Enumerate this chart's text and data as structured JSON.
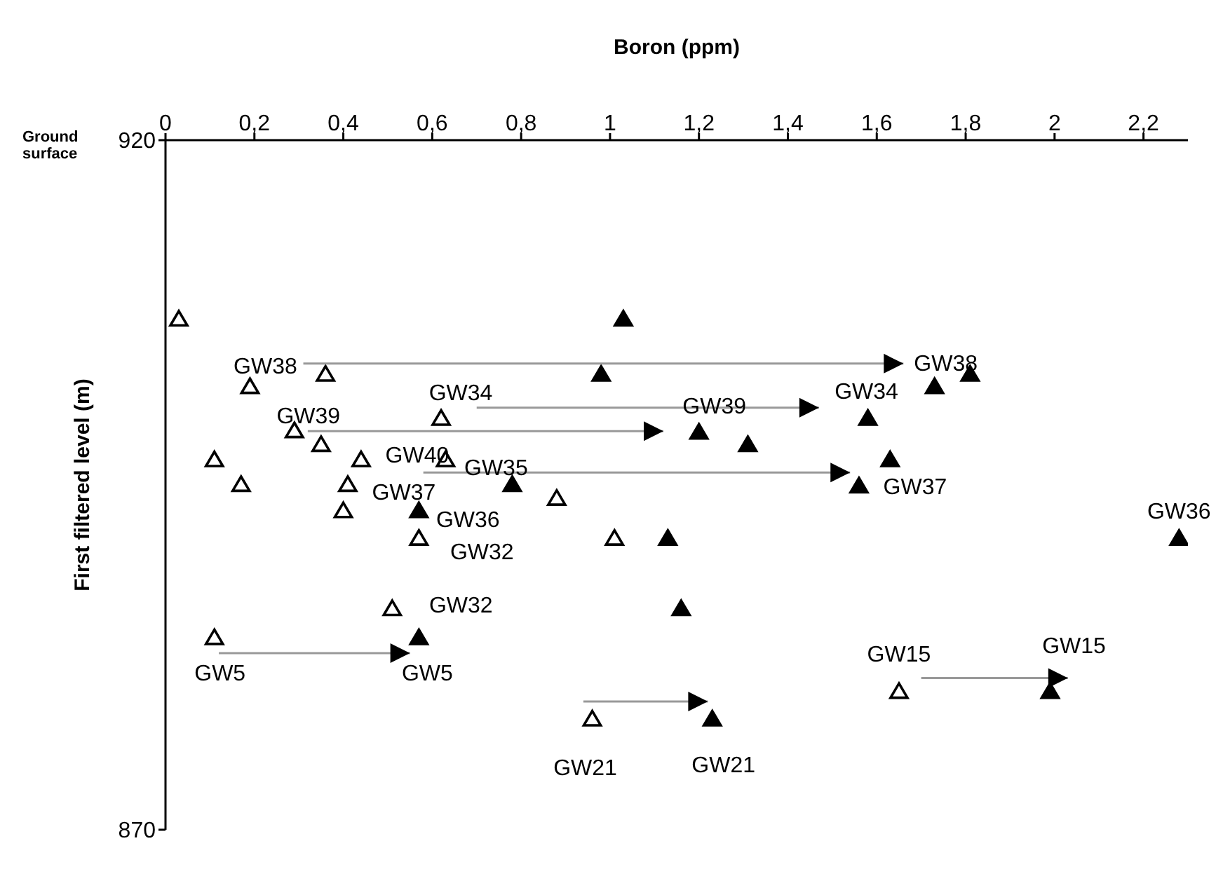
{
  "chart_data": {
    "type": "scatter",
    "xlabel": "Boron (ppm)",
    "ylabel": "First filtered  level (m)",
    "xlim": [
      0,
      2.3
    ],
    "xticks": [
      0,
      {
        "value": 0.2,
        "label": "0,2"
      },
      {
        "value": 0.4,
        "label": "0,4"
      },
      {
        "value": 0.6,
        "label": "0,6"
      },
      {
        "value": 0.8,
        "label": "0,8"
      },
      1,
      {
        "value": 1.2,
        "label": "1,2"
      },
      {
        "value": 1.4,
        "label": "1,4"
      },
      {
        "value": 1.6,
        "label": "1,6"
      },
      {
        "value": 1.8,
        "label": "1,8"
      },
      2,
      {
        "value": 2.2,
        "label": "2,2"
      }
    ],
    "ylim": [
      870,
      920
    ],
    "yticks": [
      870,
      920
    ],
    "grid": false,
    "marker": "triangle",
    "series": [
      {
        "color": "#ffffff",
        "x": [
          0.03,
          0.19,
          0.36,
          0.62,
          0.29,
          0.35,
          0.11,
          0.44,
          0.63,
          0.17,
          0.41,
          0.4,
          0.88,
          0.57,
          1.01,
          0.51,
          0.11,
          0.96,
          1.65
        ],
        "values": [
          907,
          902.1,
          903,
          899.8,
          898.9,
          897.9,
          896.8,
          896.8,
          896.8,
          895,
          895,
          893.1,
          894,
          891.1,
          891.1,
          886,
          883.9,
          878,
          880
        ]
      },
      {
        "color": "#000000",
        "x": [
          1.03,
          0.98,
          1.73,
          1.81,
          1.2,
          1.31,
          1.58,
          1.63,
          0.78,
          1.56,
          0.57,
          1.13,
          1.16,
          0.57,
          1.23,
          1.99,
          2.28
        ],
        "values": [
          907,
          903,
          902.1,
          903,
          898.8,
          897.9,
          899.8,
          896.8,
          895,
          894.9,
          893.1,
          891.1,
          886,
          883.9,
          878,
          880,
          891.1
        ]
      },
      {
        "type": "line",
        "color": "#999999",
        "marker": "none",
        "x": [
          0.31,
          1.66
        ],
        "values": [
          903.8,
          903.8
        ]
      },
      {
        "type": "line",
        "color": "#999999",
        "marker": "none",
        "x": [
          0.7,
          1.47
        ],
        "values": [
          900.6,
          900.6
        ]
      },
      {
        "type": "line",
        "color": "#999999",
        "marker": "none",
        "x": [
          0.32,
          1.12
        ],
        "values": [
          898.9,
          898.9
        ]
      },
      {
        "type": "line",
        "color": "#999999",
        "marker": "none",
        "x": [
          0.58,
          1.54
        ],
        "values": [
          895.9,
          895.9
        ]
      },
      {
        "type": "line",
        "color": "#999999",
        "marker": "none",
        "x": [
          0.12,
          0.55
        ],
        "values": [
          882.8,
          882.8
        ]
      },
      {
        "type": "line",
        "color": "#999999",
        "marker": "none",
        "x": [
          0.94,
          1.22
        ],
        "values": [
          879.3,
          879.3
        ]
      },
      {
        "type": "line",
        "color": "#999999",
        "marker": "none",
        "x": [
          1.7,
          2.03
        ],
        "values": [
          881,
          881
        ]
      }
    ],
    "annotations": [
      "Ground surface",
      {
        "text": "GW38",
        "x": 0.19,
        "y": 902.1
      },
      {
        "text": "GW38",
        "x": 1.73,
        "y": 902.1
      },
      {
        "text": "GW34",
        "x": 0.62,
        "y": 899.8
      },
      {
        "text": "GW34",
        "x": 1.58,
        "y": 899.8
      },
      {
        "text": "GW39",
        "x": 0.29,
        "y": 898.9
      },
      {
        "text": "GW39",
        "x": 1.2,
        "y": 898.8
      },
      {
        "text": "GW40",
        "x": 0.44,
        "y": 896.8
      },
      {
        "text": "GW35",
        "x": 0.63,
        "y": 896.8
      },
      {
        "text": "GW37",
        "x": 0.41,
        "y": 895
      },
      {
        "text": "GW37",
        "x": 1.56,
        "y": 894.9
      },
      {
        "text": "GW36",
        "x": 0.57,
        "y": 893.1
      },
      {
        "text": "GW36",
        "x": 2.28,
        "y": 891.1
      },
      {
        "text": "GW32",
        "x": 0.57,
        "y": 891.1
      },
      {
        "text": "GW32",
        "x": 0.51,
        "y": 886
      },
      {
        "text": "GW5",
        "x": 0.11,
        "y": 883.9
      },
      {
        "text": "GW5",
        "x": 0.57,
        "y": 883.9
      },
      {
        "text": "GW21",
        "x": 0.96,
        "y": 878
      },
      {
        "text": "GW21",
        "x": 1.23,
        "y": 878
      },
      {
        "text": "GW15",
        "x": 1.65,
        "y": 880
      },
      {
        "text": "GW15",
        "x": 1.99,
        "y": 880
      }
    ]
  }
}
